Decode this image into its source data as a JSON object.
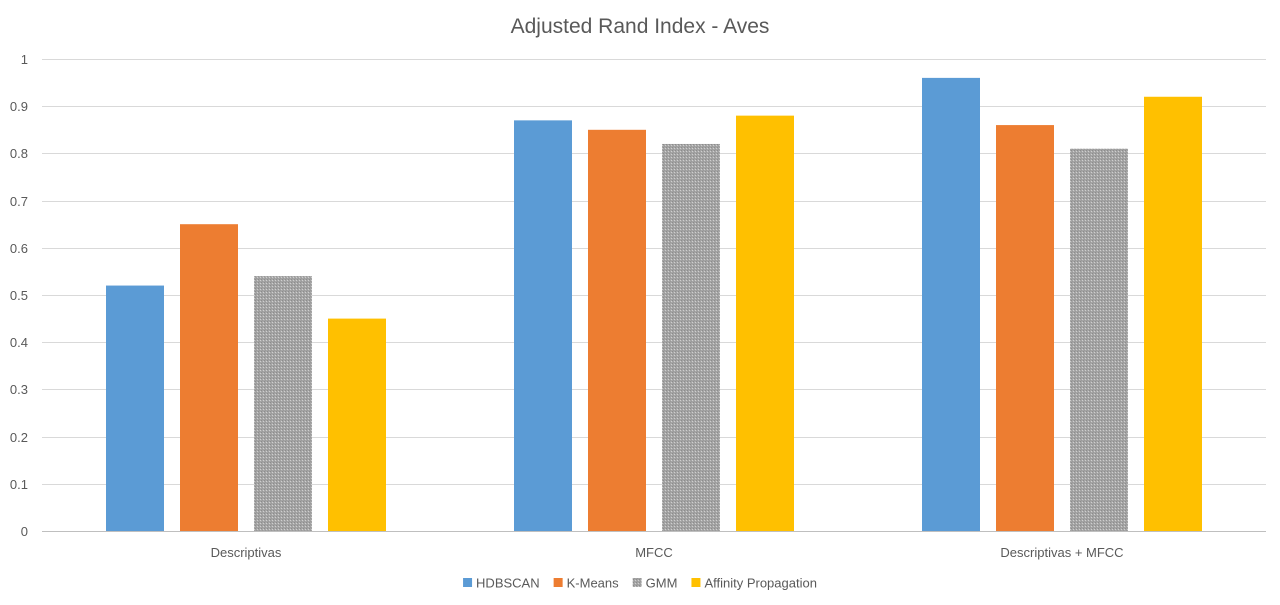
{
  "chart_data": {
    "type": "bar",
    "title": "Adjusted Rand Index - Aves",
    "xlabel": "",
    "ylabel": "",
    "categories": [
      "Descriptivas",
      "MFCC",
      "Descriptivas + MFCC"
    ],
    "ylim": [
      0,
      1
    ],
    "yticks": [
      0,
      0.1,
      0.2,
      0.3,
      0.4,
      0.5,
      0.6,
      0.7,
      0.8,
      0.9,
      1
    ],
    "ytick_labels": [
      "0",
      "0.1",
      "0.2",
      "0.3",
      "0.4",
      "0.5",
      "0.6",
      "0.7",
      "0.8",
      "0.9",
      "1"
    ],
    "grid": true,
    "legend_position": "bottom",
    "series": [
      {
        "name": "HDBSCAN",
        "color": "#5b9bd5",
        "pattern": "solid",
        "values": [
          0.52,
          0.87,
          0.96
        ]
      },
      {
        "name": "K-Means",
        "color": "#ed7d31",
        "pattern": "solid",
        "values": [
          0.65,
          0.85,
          0.86
        ]
      },
      {
        "name": "GMM",
        "color": "#a5a5a5",
        "pattern": "dotted",
        "values": [
          0.54,
          0.82,
          0.81
        ]
      },
      {
        "name": "Affinity Propagation",
        "color": "#ffc000",
        "pattern": "solid",
        "values": [
          0.45,
          0.88,
          0.92
        ]
      }
    ]
  }
}
